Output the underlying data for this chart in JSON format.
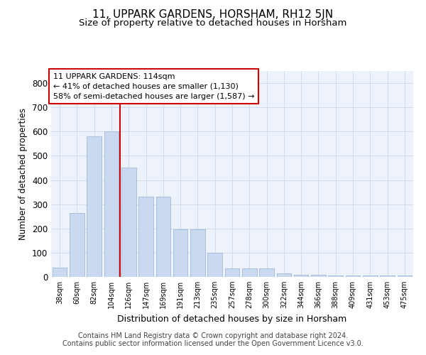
{
  "title": "11, UPPARK GARDENS, HORSHAM, RH12 5JN",
  "subtitle": "Size of property relative to detached houses in Horsham",
  "xlabel": "Distribution of detached houses by size in Horsham",
  "ylabel": "Number of detached properties",
  "categories": [
    "38sqm",
    "60sqm",
    "82sqm",
    "104sqm",
    "126sqm",
    "147sqm",
    "169sqm",
    "191sqm",
    "213sqm",
    "235sqm",
    "257sqm",
    "278sqm",
    "300sqm",
    "322sqm",
    "344sqm",
    "366sqm",
    "388sqm",
    "409sqm",
    "431sqm",
    "453sqm",
    "475sqm"
  ],
  "values": [
    38,
    265,
    580,
    600,
    450,
    330,
    330,
    195,
    195,
    100,
    35,
    35,
    35,
    15,
    10,
    10,
    5,
    5,
    5,
    5,
    5
  ],
  "bar_color": "#c9d9f0",
  "bar_edge_color": "#a0b8d8",
  "grid_color": "#d0dded",
  "bg_color": "#eef2fa",
  "red_line_color": "#cc0000",
  "annotation_title": "11 UPPARK GARDENS: 114sqm",
  "annotation_line1": "← 41% of detached houses are smaller (1,130)",
  "annotation_line2": "58% of semi-detached houses are larger (1,587) →",
  "annotation_box_color": "#ffffff",
  "annotation_border_color": "#cc0000",
  "footer1": "Contains HM Land Registry data © Crown copyright and database right 2024.",
  "footer2": "Contains public sector information licensed under the Open Government Licence v3.0.",
  "ylim": [
    0,
    850
  ],
  "yticks": [
    0,
    100,
    200,
    300,
    400,
    500,
    600,
    700,
    800
  ],
  "title_fontsize": 11,
  "subtitle_fontsize": 9.5,
  "red_line_x": 3.5
}
